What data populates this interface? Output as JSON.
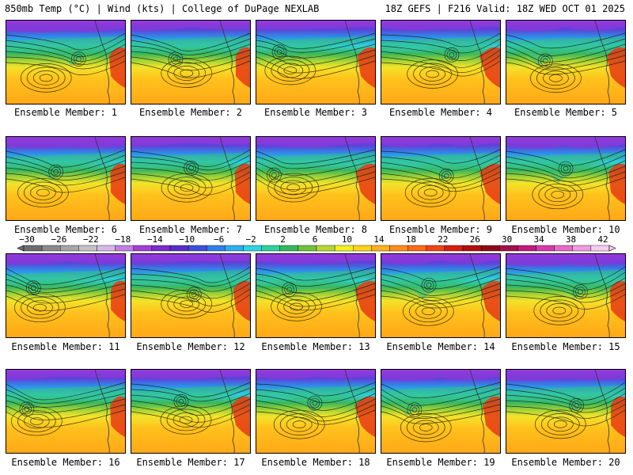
{
  "header": {
    "left": "850mb Temp (°C) | Wind (kts) | College of DuPage NEXLAB",
    "right": "18Z GEFS | F216 Valid: 18Z WED OCT 01 2025"
  },
  "panel_label_prefix": "Ensemble Member:",
  "members": [
    {
      "label": "Ensemble Member: 1"
    },
    {
      "label": "Ensemble Member: 2"
    },
    {
      "label": "Ensemble Member: 3"
    },
    {
      "label": "Ensemble Member: 4"
    },
    {
      "label": "Ensemble Member: 5"
    },
    {
      "label": "Ensemble Member: 6"
    },
    {
      "label": "Ensemble Member: 7"
    },
    {
      "label": "Ensemble Member: 8"
    },
    {
      "label": "Ensemble Member: 9"
    },
    {
      "label": "Ensemble Member: 10"
    },
    {
      "label": "Ensemble Member: 11"
    },
    {
      "label": "Ensemble Member: 12"
    },
    {
      "label": "Ensemble Member: 13"
    },
    {
      "label": "Ensemble Member: 14"
    },
    {
      "label": "Ensemble Member: 15"
    },
    {
      "label": "Ensemble Member: 16"
    },
    {
      "label": "Ensemble Member: 17"
    },
    {
      "label": "Ensemble Member: 18"
    },
    {
      "label": "Ensemble Member: 19"
    },
    {
      "label": "Ensemble Member: 20"
    }
  ],
  "colorbar": {
    "ticks": [
      -30,
      -26,
      -22,
      -18,
      -14,
      -10,
      -6,
      -2,
      2,
      6,
      10,
      14,
      18,
      22,
      26,
      30,
      34,
      38,
      42
    ],
    "colors": [
      "#6d6d6d",
      "#8a8a8a",
      "#a6a6a6",
      "#c2c2c2",
      "#d5b8e8",
      "#c17ee3",
      "#a13fd6",
      "#7a2bc8",
      "#5a2fc4",
      "#3f4fdc",
      "#2f7fe6",
      "#2eaef0",
      "#2ed4e0",
      "#2fcf9f",
      "#34b85c",
      "#6ec23a",
      "#b8d631",
      "#f2f020",
      "#ffd21a",
      "#ffb01a",
      "#ff8c17",
      "#ff6a14",
      "#f04412",
      "#d81e10",
      "#b0100e",
      "#8c0a14",
      "#a0124a",
      "#c01c7c",
      "#d83aa8",
      "#e868c8",
      "#f09ae0",
      "#f8ccf0"
    ]
  }
}
